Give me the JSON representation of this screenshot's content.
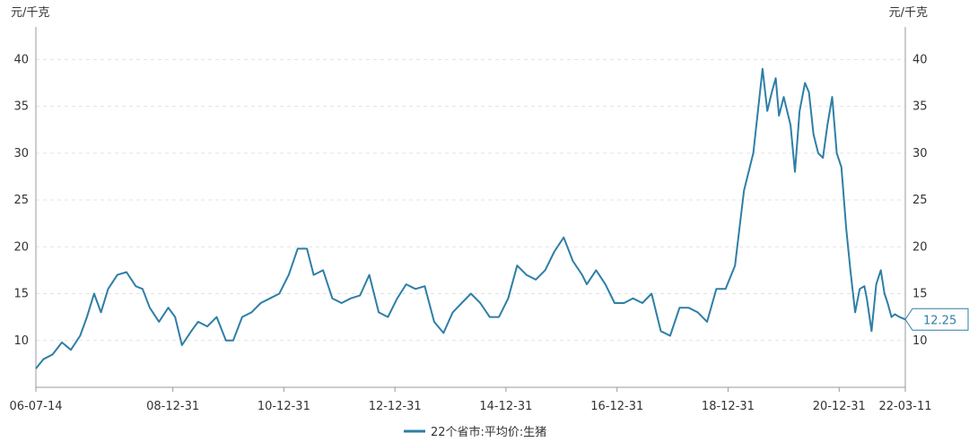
{
  "chart_data": {
    "type": "line",
    "left_unit": "元/千克",
    "right_unit": "元/千克",
    "y_ticks": [
      10,
      15,
      20,
      25,
      30,
      35,
      40
    ],
    "ylim": [
      5,
      43
    ],
    "x_ticks": [
      "06-07-14",
      "08-12-31",
      "10-12-31",
      "12-12-31",
      "14-12-31",
      "16-12-31",
      "18-12-31",
      "20-12-31",
      "22-03-11"
    ],
    "x_tick_dates": [
      "2006-07-14",
      "2008-12-31",
      "2010-12-31",
      "2012-12-31",
      "2014-12-31",
      "2016-12-31",
      "2018-12-31",
      "2020-12-31",
      "2022-03-11"
    ],
    "grid": true,
    "legend_position": "bottom",
    "color": "#2e7fa6",
    "last_value_label": "12.25",
    "series": [
      {
        "name": "22个省市:平均价:生猪",
        "dates": [
          "2006-07-14",
          "2006-09-01",
          "2006-11-01",
          "2007-01-01",
          "2007-03-01",
          "2007-05-01",
          "2007-06-15",
          "2007-08-01",
          "2007-09-15",
          "2007-11-01",
          "2008-01-01",
          "2008-03-01",
          "2008-05-01",
          "2008-06-15",
          "2008-08-01",
          "2008-10-01",
          "2008-12-01",
          "2009-01-15",
          "2009-03-01",
          "2009-05-01",
          "2009-06-15",
          "2009-08-15",
          "2009-10-15",
          "2009-12-15",
          "2010-02-01",
          "2010-04-01",
          "2010-06-01",
          "2010-08-01",
          "2010-10-01",
          "2010-12-01",
          "2011-02-01",
          "2011-04-01",
          "2011-06-01",
          "2011-07-15",
          "2011-09-15",
          "2011-11-15",
          "2012-01-15",
          "2012-03-15",
          "2012-05-15",
          "2012-07-15",
          "2012-09-15",
          "2012-11-15",
          "2013-01-15",
          "2013-03-15",
          "2013-05-15",
          "2013-07-15",
          "2013-09-15",
          "2013-11-15",
          "2014-01-15",
          "2014-03-15",
          "2014-05-15",
          "2014-07-15",
          "2014-09-15",
          "2014-11-15",
          "2015-01-15",
          "2015-03-15",
          "2015-05-15",
          "2015-07-15",
          "2015-09-15",
          "2015-11-15",
          "2016-01-15",
          "2016-03-15",
          "2016-05-15",
          "2016-06-15",
          "2016-08-15",
          "2016-10-15",
          "2016-12-15",
          "2017-02-15",
          "2017-04-15",
          "2017-06-15",
          "2017-08-15",
          "2017-10-15",
          "2017-12-15",
          "2018-02-15",
          "2018-04-15",
          "2018-06-15",
          "2018-08-15",
          "2018-10-15",
          "2018-12-15",
          "2019-02-15",
          "2019-04-15",
          "2019-06-15",
          "2019-08-15",
          "2019-09-15",
          "2019-10-15",
          "2019-11-10",
          "2019-12-01",
          "2020-01-01",
          "2020-02-15",
          "2020-03-15",
          "2020-04-15",
          "2020-05-20",
          "2020-06-15",
          "2020-07-15",
          "2020-08-15",
          "2020-09-15",
          "2020-10-15",
          "2020-11-15",
          "2020-12-15",
          "2021-01-15",
          "2021-02-15",
          "2021-03-15",
          "2021-04-15",
          "2021-05-15",
          "2021-06-15",
          "2021-07-01",
          "2021-08-01",
          "2021-09-01",
          "2021-10-01",
          "2021-10-25",
          "2021-11-15",
          "2021-12-10",
          "2022-01-01",
          "2022-02-01",
          "2022-03-11"
        ],
        "values": [
          7.0,
          8.0,
          8.5,
          9.8,
          9.0,
          10.5,
          12.5,
          15.0,
          13.0,
          15.5,
          17.0,
          17.3,
          15.8,
          15.5,
          13.5,
          12.0,
          13.5,
          12.5,
          9.5,
          11.0,
          12.0,
          11.5,
          12.5,
          10.0,
          10.0,
          12.5,
          13.0,
          14.0,
          14.5,
          15.0,
          17.0,
          19.8,
          19.8,
          17.0,
          17.5,
          14.5,
          14.0,
          14.5,
          14.8,
          17.0,
          13.0,
          12.5,
          14.5,
          16.0,
          15.5,
          15.8,
          12.0,
          10.8,
          13.0,
          14.0,
          15.0,
          14.0,
          12.5,
          12.5,
          14.5,
          18.0,
          17.0,
          16.5,
          17.5,
          19.5,
          21.0,
          18.5,
          17.0,
          16.0,
          17.5,
          16.0,
          14.0,
          14.0,
          14.5,
          14.0,
          15.0,
          11.0,
          10.5,
          13.5,
          13.5,
          13.0,
          12.0,
          15.5,
          15.5,
          18.0,
          26.0,
          30.0,
          39.0,
          34.5,
          36.5,
          38.0,
          34.0,
          36.0,
          33.0,
          28.0,
          34.5,
          37.5,
          36.5,
          32.0,
          30.0,
          29.5,
          33.0,
          36.0,
          30.0,
          28.5,
          22.0,
          17.5,
          13.0,
          15.5,
          15.8,
          14.5,
          11.0,
          16.0,
          17.5,
          15.0,
          14.0,
          12.5,
          12.8,
          12.5,
          12.25
        ]
      }
    ]
  }
}
